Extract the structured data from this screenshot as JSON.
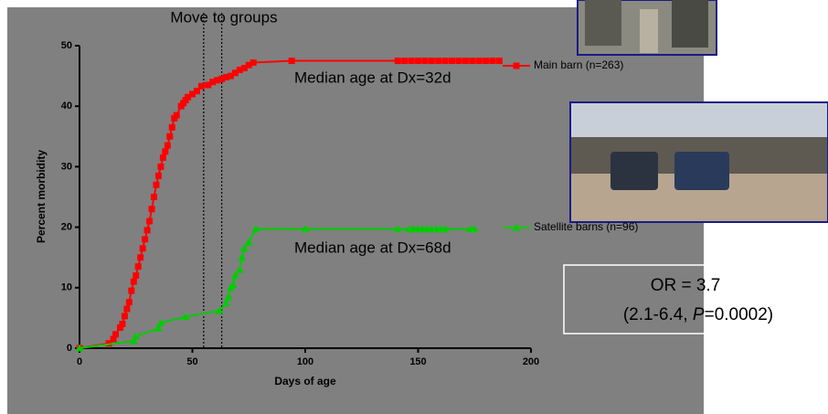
{
  "chart_data": {
    "type": "line",
    "title": "Move to groups",
    "x_label": "Days of age",
    "y_label": "Percent morbidity",
    "xlim": [
      0,
      200
    ],
    "xticks": [
      0,
      50,
      100,
      150,
      200
    ],
    "ylim": [
      0,
      50
    ],
    "yticks": [
      0,
      10,
      20,
      30,
      40,
      50
    ],
    "group_move_days": [
      55,
      63
    ],
    "series": [
      {
        "name": "Main barn (n=263)",
        "color": "#ff0000",
        "marker": "square",
        "x": [
          0,
          13,
          15,
          16,
          18,
          19,
          20,
          21,
          22,
          23,
          24,
          25,
          26,
          27,
          28,
          29,
          30,
          31,
          32,
          33,
          34,
          35,
          36,
          37,
          38,
          39,
          40,
          41,
          42,
          43,
          45,
          46,
          47,
          48,
          50,
          52,
          54,
          57,
          59,
          61,
          63,
          65,
          67,
          69,
          71,
          73,
          75,
          77,
          94,
          141,
          144,
          147,
          150,
          153,
          156,
          159,
          162,
          165,
          168,
          171,
          174,
          177,
          180,
          183,
          186
        ],
        "values": [
          0,
          0.8,
          1.5,
          2.3,
          3.4,
          4,
          5.3,
          6.5,
          7.6,
          9.5,
          11,
          12,
          13.5,
          15,
          16.5,
          18,
          19.5,
          21,
          23,
          25,
          27,
          28.5,
          30,
          31.5,
          32.5,
          33.5,
          35,
          36.5,
          38,
          38.5,
          40,
          40.5,
          41,
          41.5,
          42,
          42.5,
          43.3,
          43.5,
          44,
          44.3,
          44.5,
          44.8,
          45,
          45.5,
          46,
          46.3,
          46.8,
          47.2,
          47.5,
          47.5,
          47.5,
          47.5,
          47.5,
          47.5,
          47.5,
          47.5,
          47.5,
          47.5,
          47.5,
          47.5,
          47.5,
          47.5,
          47.5,
          47.5,
          47.5
        ]
      },
      {
        "name": "Satellite barns (n=96)",
        "color": "#00cc00",
        "marker": "triangle",
        "x": [
          0,
          24,
          25,
          35,
          36,
          47,
          62,
          65,
          66,
          67,
          68,
          69,
          71,
          72,
          73,
          75,
          78,
          100,
          141,
          146,
          148,
          150,
          152,
          154,
          156,
          158,
          160,
          162,
          173,
          175
        ],
        "values": [
          0,
          1.2,
          2,
          3.3,
          4.2,
          5.2,
          6.2,
          7.5,
          8.5,
          10,
          10.5,
          12,
          13,
          15,
          16.5,
          17.5,
          19.7,
          19.7,
          19.7,
          19.7,
          19.7,
          19.7,
          19.7,
          19.7,
          19.7,
          19.7,
          19.7,
          19.7,
          19.7,
          19.7
        ]
      }
    ],
    "annotations": [
      "Median age at Dx=32d",
      "Median age at Dx=68d"
    ],
    "odds_ratio": {
      "line1": "OR = 3.7",
      "ci_prefix": "(2.1-6.4, ",
      "p_symbol": "P",
      "p_value": "=0.0002)"
    }
  }
}
